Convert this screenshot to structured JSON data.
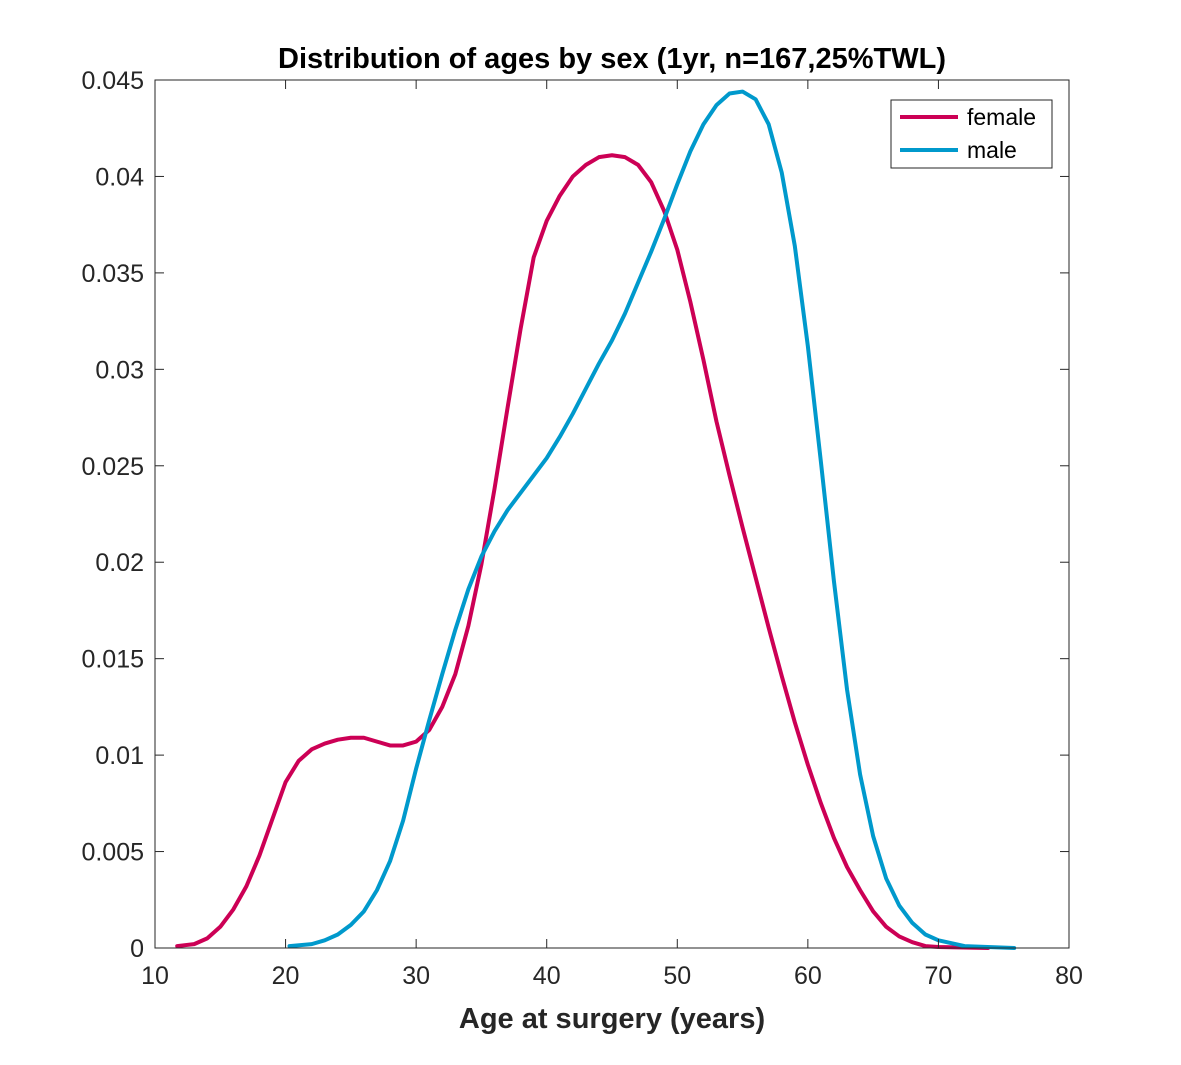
{
  "chart_data": {
    "type": "line",
    "title": "Distribution of ages by sex (1yr, n=167,25%TWL)",
    "xlabel": "Age at surgery (years)",
    "ylabel": "",
    "xlim": [
      10,
      80
    ],
    "ylim": [
      0,
      0.045
    ],
    "xticks": [
      10,
      20,
      30,
      40,
      50,
      60,
      70,
      80
    ],
    "xtick_labels": [
      "10",
      "20",
      "30",
      "40",
      "50",
      "60",
      "70",
      "80"
    ],
    "yticks": [
      0,
      0.005,
      0.01,
      0.015,
      0.02,
      0.025,
      0.03,
      0.035,
      0.04,
      0.045
    ],
    "ytick_labels": [
      "0",
      "0.005",
      "0.01",
      "0.015",
      "0.02",
      "0.025",
      "0.03",
      "0.035",
      "0.04",
      "0.045"
    ],
    "grid": false,
    "legend_position": "top-right",
    "series": [
      {
        "name": "female",
        "color": "#cc0055",
        "points": [
          [
            11.7,
            0.0001
          ],
          [
            13,
            0.0002
          ],
          [
            14,
            0.0005
          ],
          [
            15,
            0.0011
          ],
          [
            16,
            0.002
          ],
          [
            17,
            0.0032
          ],
          [
            18,
            0.0048
          ],
          [
            19,
            0.0067
          ],
          [
            20,
            0.0086
          ],
          [
            21,
            0.0097
          ],
          [
            22,
            0.0103
          ],
          [
            23,
            0.0106
          ],
          [
            24,
            0.0108
          ],
          [
            25,
            0.0109
          ],
          [
            26,
            0.0109
          ],
          [
            27,
            0.0107
          ],
          [
            28,
            0.0105
          ],
          [
            29,
            0.0105
          ],
          [
            30,
            0.0107
          ],
          [
            31,
            0.0113
          ],
          [
            32,
            0.0125
          ],
          [
            33,
            0.0142
          ],
          [
            34,
            0.0167
          ],
          [
            35,
            0.0199
          ],
          [
            36,
            0.0238
          ],
          [
            37,
            0.028
          ],
          [
            38,
            0.0321
          ],
          [
            39,
            0.0358
          ],
          [
            40,
            0.0377
          ],
          [
            41,
            0.039
          ],
          [
            42,
            0.04
          ],
          [
            43,
            0.0406
          ],
          [
            44,
            0.041
          ],
          [
            45,
            0.0411
          ],
          [
            46,
            0.041
          ],
          [
            47,
            0.0406
          ],
          [
            48,
            0.0397
          ],
          [
            49,
            0.0382
          ],
          [
            50,
            0.0362
          ],
          [
            51,
            0.0335
          ],
          [
            52,
            0.0305
          ],
          [
            53,
            0.0273
          ],
          [
            54,
            0.0245
          ],
          [
            55,
            0.0218
          ],
          [
            56,
            0.0192
          ],
          [
            57,
            0.0166
          ],
          [
            58,
            0.0141
          ],
          [
            59,
            0.0117
          ],
          [
            60,
            0.0095
          ],
          [
            61,
            0.0075
          ],
          [
            62,
            0.0057
          ],
          [
            63,
            0.0042
          ],
          [
            64,
            0.003
          ],
          [
            65,
            0.0019
          ],
          [
            66,
            0.0011
          ],
          [
            67,
            0.0006
          ],
          [
            68,
            0.0003
          ],
          [
            69,
            0.0001
          ],
          [
            70,
            5e-05
          ],
          [
            73.8,
            0.0
          ]
        ]
      },
      {
        "name": "male",
        "color": "#0099cc",
        "points": [
          [
            20.3,
            0.0001
          ],
          [
            22,
            0.0002
          ],
          [
            23,
            0.0004
          ],
          [
            24,
            0.0007
          ],
          [
            25,
            0.0012
          ],
          [
            26,
            0.0019
          ],
          [
            27,
            0.003
          ],
          [
            28,
            0.0045
          ],
          [
            29,
            0.0066
          ],
          [
            30,
            0.0093
          ],
          [
            31,
            0.0118
          ],
          [
            32,
            0.0142
          ],
          [
            33,
            0.0165
          ],
          [
            34,
            0.0186
          ],
          [
            35,
            0.0203
          ],
          [
            36,
            0.0216
          ],
          [
            37,
            0.0227
          ],
          [
            38,
            0.0236
          ],
          [
            39,
            0.0245
          ],
          [
            40,
            0.0254
          ],
          [
            41,
            0.0265
          ],
          [
            42,
            0.0277
          ],
          [
            43,
            0.029
          ],
          [
            44,
            0.0303
          ],
          [
            45,
            0.0315
          ],
          [
            46,
            0.0329
          ],
          [
            47,
            0.0345
          ],
          [
            48,
            0.0361
          ],
          [
            49,
            0.0378
          ],
          [
            50,
            0.0396
          ],
          [
            51,
            0.0413
          ],
          [
            52,
            0.0427
          ],
          [
            53,
            0.0437
          ],
          [
            54,
            0.0443
          ],
          [
            55,
            0.0444
          ],
          [
            56,
            0.044
          ],
          [
            57,
            0.0427
          ],
          [
            58,
            0.0402
          ],
          [
            59,
            0.0364
          ],
          [
            60,
            0.0312
          ],
          [
            61,
            0.0252
          ],
          [
            62,
            0.019
          ],
          [
            63,
            0.0134
          ],
          [
            64,
            0.009
          ],
          [
            65,
            0.0058
          ],
          [
            66,
            0.0036
          ],
          [
            67,
            0.0022
          ],
          [
            68,
            0.0013
          ],
          [
            69,
            0.0007
          ],
          [
            70,
            0.0004
          ],
          [
            72,
            0.0001
          ],
          [
            75.8,
            0.0
          ]
        ]
      }
    ]
  }
}
